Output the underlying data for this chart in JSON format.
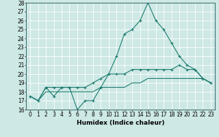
{
  "xlabel": "Humidex (Indice chaleur)",
  "bg_color": "#cde8e5",
  "line_color": "#1a7a6e",
  "grid_color": "#b0d8d4",
  "xlim": [
    -0.5,
    23.5
  ],
  "ylim": [
    16,
    28
  ],
  "yticks": [
    16,
    17,
    18,
    19,
    20,
    21,
    22,
    23,
    24,
    25,
    26,
    27,
    28
  ],
  "xticks": [
    0,
    1,
    2,
    3,
    4,
    5,
    6,
    7,
    8,
    9,
    10,
    11,
    12,
    13,
    14,
    15,
    16,
    17,
    18,
    19,
    20,
    21,
    22,
    23
  ],
  "line1_x": [
    0,
    1,
    2,
    3,
    4,
    5,
    6,
    7,
    8,
    9,
    10,
    11,
    12,
    13,
    14,
    15,
    16,
    17,
    18,
    19,
    20,
    21,
    22,
    23
  ],
  "line1_y": [
    17.5,
    17.0,
    18.5,
    17.5,
    18.5,
    18.5,
    16.0,
    17.0,
    17.0,
    18.5,
    20.0,
    22.0,
    24.5,
    25.0,
    26.0,
    28.0,
    26.0,
    25.0,
    23.5,
    22.0,
    21.0,
    20.5,
    19.5,
    19.0
  ],
  "line2_x": [
    0,
    1,
    2,
    3,
    4,
    5,
    6,
    7,
    8,
    9,
    10,
    11,
    12,
    13,
    14,
    15,
    16,
    17,
    18,
    19,
    20,
    21,
    22,
    23
  ],
  "line2_y": [
    17.5,
    17.0,
    18.5,
    18.5,
    18.5,
    18.5,
    18.5,
    18.5,
    19.0,
    19.5,
    20.0,
    20.0,
    20.0,
    20.5,
    20.5,
    20.5,
    20.5,
    20.5,
    20.5,
    21.0,
    20.5,
    20.5,
    19.5,
    19.0
  ],
  "line3_x": [
    0,
    1,
    2,
    3,
    4,
    5,
    6,
    7,
    8,
    9,
    10,
    11,
    12,
    13,
    14,
    15,
    16,
    17,
    18,
    19,
    20,
    21,
    22,
    23
  ],
  "line3_y": [
    17.5,
    17.0,
    18.0,
    18.0,
    18.0,
    18.0,
    18.0,
    18.0,
    18.0,
    18.5,
    18.5,
    18.5,
    18.5,
    19.0,
    19.0,
    19.5,
    19.5,
    19.5,
    19.5,
    19.5,
    19.5,
    19.5,
    19.5,
    19.0
  ],
  "xlabel_fontsize": 6.5,
  "tick_fontsize": 5.5,
  "ylabel_tick_fontsize": 5.5
}
